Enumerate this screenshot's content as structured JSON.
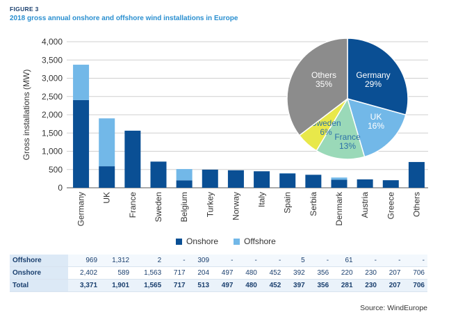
{
  "figure": {
    "label": "FIGURE 3",
    "title": "2018 gross annual onshore and offshore wind installations in Europe"
  },
  "colors": {
    "onshore": "#0a4f94",
    "offshore": "#72b8e8"
  },
  "chart_data": [
    {
      "type": "bar",
      "stacked": true,
      "ylabel": "Gross installations (MW)",
      "ylim": [
        0,
        4000
      ],
      "yticks": [
        "0",
        "500",
        "1,000",
        "1,500",
        "2,000",
        "2,500",
        "3,000",
        "3,500",
        "4,000"
      ],
      "categories": [
        "Germany",
        "UK",
        "France",
        "Sweden",
        "Belgium",
        "Turkey",
        "Norway",
        "Italy",
        "Spain",
        "Serbia",
        "Denmark",
        "Austria",
        "Greece",
        "Others"
      ],
      "series": [
        {
          "name": "Onshore",
          "values": [
            2402,
            589,
            1563,
            717,
            204,
            497,
            480,
            452,
            392,
            356,
            220,
            230,
            207,
            706
          ]
        },
        {
          "name": "Offshore",
          "values": [
            969,
            1312,
            2,
            0,
            309,
            0,
            0,
            0,
            5,
            0,
            61,
            0,
            0,
            0
          ]
        }
      ],
      "legend": [
        "Onshore",
        "Offshore"
      ]
    },
    {
      "type": "pie",
      "slices": [
        {
          "label": "Germany",
          "pct_label": "29%",
          "value": 29,
          "color": "#0a4f94"
        },
        {
          "label": "UK",
          "pct_label": "16%",
          "value": 16,
          "color": "#72b8e8"
        },
        {
          "label": "France",
          "pct_label": "13%",
          "value": 13,
          "color": "#9ad9b8"
        },
        {
          "label": "Sweden",
          "pct_label": "6%",
          "value": 6,
          "color": "#e8e84a"
        },
        {
          "label": "Others",
          "pct_label": "35%",
          "value": 35,
          "color": "#8c8c8c"
        }
      ]
    }
  ],
  "table": {
    "rows": [
      {
        "label": "Offshore",
        "values": [
          "969",
          "1,312",
          "2",
          "-",
          "309",
          "-",
          "-",
          "-",
          "5",
          "-",
          "61",
          "-",
          "-",
          "-"
        ]
      },
      {
        "label": "Onshore",
        "values": [
          "2,402",
          "589",
          "1,563",
          "717",
          "204",
          "497",
          "480",
          "452",
          "392",
          "356",
          "220",
          "230",
          "207",
          "706"
        ]
      },
      {
        "label": "Total",
        "values": [
          "3,371",
          "1,901",
          "1,565",
          "717",
          "513",
          "497",
          "480",
          "452",
          "397",
          "356",
          "281",
          "230",
          "207",
          "706"
        ]
      }
    ]
  },
  "source": "Source: WindEurope"
}
